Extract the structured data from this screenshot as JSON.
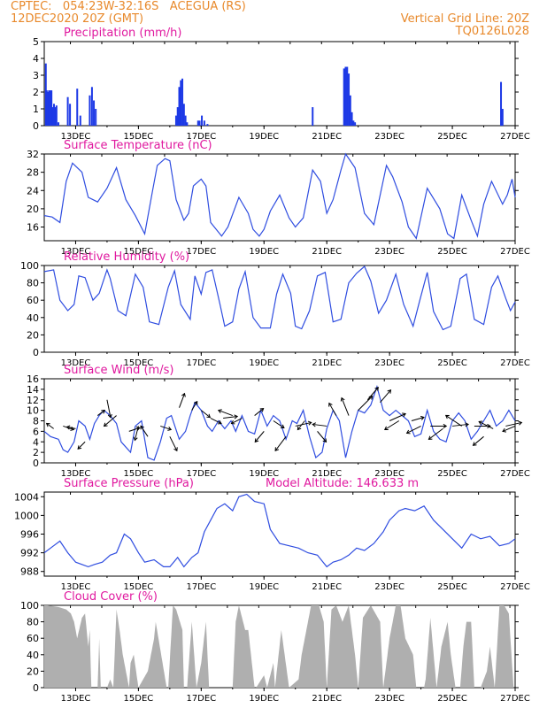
{
  "header": {
    "left_line1": "CPTEC:   054:23W-32:16S   ACEGUA (RS)",
    "left_line2": "12DEC2020 20Z (GMT)",
    "right_line1": "Vertical Grid Line: 20Z",
    "right_line2": "TQ0126L028"
  },
  "colors": {
    "header": "#e8892b",
    "title": "#e0199f",
    "line": "#2f4de0",
    "bar": "#1d39e6",
    "cloud": "#a9a9a9",
    "arrow": "#000000"
  },
  "x_axis_labels": [
    "13DEC",
    "15DEC",
    "17DEC",
    "19DEC",
    "21DEC",
    "23DEC",
    "25DEC",
    "27DEC"
  ],
  "chart_data": [
    {
      "type": "bar",
      "title": "Precipitation (mm/h)",
      "ylim": [
        0,
        5
      ],
      "yticks": [
        0,
        1,
        2,
        3,
        4,
        5
      ],
      "x_range_days": [
        12.0,
        27.0
      ],
      "x": [
        12.05,
        12.08,
        12.11,
        12.15,
        12.19,
        12.23,
        12.27,
        12.31,
        12.35,
        12.39,
        12.45,
        12.75,
        12.82,
        13.05,
        13.15,
        13.45,
        13.52,
        13.58,
        13.64,
        16.2,
        16.25,
        16.3,
        16.35,
        16.4,
        16.45,
        16.5,
        16.55,
        16.9,
        16.95,
        17.02,
        17.1,
        17.2,
        20.55,
        21.55,
        21.6,
        21.65,
        21.7,
        21.75,
        21.8,
        21.85,
        21.9,
        26.55,
        26.6
      ],
      "values": [
        3.7,
        2.1,
        2.0,
        2.1,
        2.1,
        2.1,
        1.1,
        1.3,
        1.1,
        1.2,
        0.2,
        1.7,
        1.3,
        2.2,
        0.6,
        1.8,
        2.3,
        1.5,
        1.0,
        0.6,
        1.1,
        2.3,
        2.7,
        2.8,
        1.3,
        0.6,
        0.2,
        0.3,
        0.3,
        0.6,
        0.3,
        0.1,
        1.1,
        3.4,
        3.5,
        3.5,
        3.1,
        1.8,
        0.8,
        0.3,
        0.2,
        2.6,
        1.0
      ]
    },
    {
      "type": "line",
      "title": "Surface Temperature (nC)",
      "ylim": [
        13,
        32
      ],
      "yticks": [
        16,
        20,
        24,
        28,
        32
      ],
      "x": [
        12.0,
        12.25,
        12.5,
        12.7,
        12.9,
        13.2,
        13.4,
        13.55,
        13.7,
        14.0,
        14.3,
        14.6,
        14.9,
        15.2,
        15.45,
        15.6,
        15.85,
        16.0,
        16.2,
        16.45,
        16.6,
        16.75,
        17.0,
        17.15,
        17.3,
        17.65,
        17.85,
        18.2,
        18.5,
        18.65,
        18.85,
        19.0,
        19.2,
        19.5,
        19.8,
        20.0,
        20.25,
        20.55,
        20.8,
        21.0,
        21.2,
        21.45,
        21.6,
        21.9,
        22.2,
        22.5,
        22.9,
        23.1,
        23.4,
        23.6,
        23.85,
        24.2,
        24.6,
        24.85,
        25.05,
        25.3,
        25.6,
        25.8,
        26.0,
        26.25,
        26.6,
        26.75,
        26.9,
        27.0
      ],
      "values": [
        18.5,
        18.2,
        17.0,
        26.0,
        30.0,
        28.0,
        22.5,
        22.0,
        21.5,
        24.5,
        29.0,
        22.0,
        18.5,
        14.5,
        24.0,
        29.5,
        31.0,
        30.5,
        22.0,
        17.5,
        19.0,
        25.0,
        26.5,
        25.0,
        17.0,
        14.0,
        16.0,
        22.5,
        19.0,
        15.5,
        14.0,
        15.5,
        19.5,
        23.0,
        18.0,
        16.0,
        18.0,
        28.5,
        26.0,
        19.0,
        22.0,
        28.5,
        32.0,
        29.0,
        19.0,
        16.5,
        29.5,
        27.0,
        21.5,
        16.0,
        13.5,
        24.5,
        20.0,
        14.5,
        13.5,
        23.0,
        17.5,
        14.0,
        21.0,
        26.0,
        21.0,
        23.0,
        26.5,
        22.5
      ]
    },
    {
      "type": "line",
      "title": "Relative Humidity (%)",
      "ylim": [
        0,
        100
      ],
      "yticks": [
        0,
        20,
        40,
        60,
        80,
        100
      ],
      "x": [
        12.0,
        12.3,
        12.5,
        12.75,
        12.95,
        13.1,
        13.3,
        13.55,
        13.75,
        14.0,
        14.1,
        14.35,
        14.6,
        14.9,
        15.15,
        15.35,
        15.65,
        15.95,
        16.15,
        16.35,
        16.65,
        16.8,
        17.0,
        17.15,
        17.35,
        17.6,
        17.75,
        18.0,
        18.2,
        18.4,
        18.65,
        18.9,
        19.2,
        19.4,
        19.6,
        19.85,
        20.0,
        20.2,
        20.45,
        20.7,
        20.95,
        21.2,
        21.45,
        21.7,
        21.95,
        22.2,
        22.4,
        22.65,
        22.9,
        23.2,
        23.45,
        23.75,
        23.95,
        24.2,
        24.4,
        24.7,
        24.95,
        25.25,
        25.45,
        25.7,
        26.0,
        26.25,
        26.45,
        26.7,
        26.85,
        27.0
      ],
      "values": [
        93,
        95,
        60,
        48,
        55,
        88,
        86,
        60,
        68,
        95,
        85,
        48,
        42,
        90,
        75,
        35,
        32,
        75,
        94,
        55,
        38,
        88,
        67,
        92,
        95,
        55,
        30,
        35,
        73,
        93,
        40,
        28,
        28,
        67,
        90,
        68,
        30,
        27,
        48,
        88,
        92,
        35,
        38,
        80,
        91,
        99,
        82,
        45,
        60,
        90,
        55,
        30,
        58,
        92,
        47,
        26,
        30,
        85,
        90,
        38,
        32,
        75,
        88,
        62,
        48,
        58
      ]
    },
    {
      "type": "line",
      "title": "Surface Wind (m/s)",
      "ylim": [
        0,
        16
      ],
      "yticks": [
        0,
        2,
        4,
        6,
        8,
        10,
        12,
        14,
        16
      ],
      "x": [
        12.0,
        12.2,
        12.45,
        12.6,
        12.75,
        12.95,
        13.1,
        13.3,
        13.45,
        13.6,
        13.75,
        13.9,
        14.1,
        14.3,
        14.45,
        14.6,
        14.75,
        14.9,
        15.1,
        15.3,
        15.5,
        15.7,
        15.9,
        16.05,
        16.3,
        16.5,
        16.65,
        16.8,
        17.0,
        17.2,
        17.35,
        17.55,
        17.75,
        17.95,
        18.1,
        18.3,
        18.5,
        18.7,
        18.9,
        19.1,
        19.3,
        19.5,
        19.7,
        19.9,
        20.05,
        20.25,
        20.45,
        20.65,
        20.85,
        21.0,
        21.2,
        21.4,
        21.6,
        21.8,
        22.0,
        22.2,
        22.4,
        22.6,
        22.8,
        23.0,
        23.2,
        23.4,
        23.6,
        23.8,
        24.0,
        24.2,
        24.4,
        24.6,
        24.8,
        25.0,
        25.2,
        25.4,
        25.6,
        25.8,
        26.0,
        26.2,
        26.4,
        26.6,
        26.8,
        27.0
      ],
      "values": [
        6,
        5,
        4.5,
        2.5,
        2,
        4,
        8,
        7,
        4.5,
        7.5,
        9,
        10,
        9,
        7.5,
        4,
        3,
        2,
        7,
        8,
        1,
        0.5,
        4,
        8.5,
        9,
        4.5,
        6,
        9,
        11.5,
        10,
        7,
        6,
        8,
        6.5,
        8,
        6,
        9,
        6,
        5.5,
        10,
        7,
        9,
        8,
        4.5,
        8,
        7.5,
        10,
        5,
        1,
        2,
        6.5,
        10,
        8,
        1,
        6,
        10,
        9.5,
        11,
        14.5,
        10,
        9,
        10,
        9,
        8,
        5,
        5.5,
        10,
        6,
        4.5,
        4,
        8,
        9.5,
        8,
        4.5,
        6,
        8,
        10,
        7,
        8,
        10,
        8
      ]
    },
    {
      "type": "line",
      "title": "Surface Pressure (hPa)",
      "annotation": "Model Altitude: 146.633 m",
      "ylim": [
        987,
        1005
      ],
      "yticks": [
        988,
        992,
        996,
        1000,
        1004
      ],
      "x": [
        12.0,
        12.3,
        12.5,
        12.75,
        13.0,
        13.2,
        13.4,
        13.6,
        13.85,
        14.1,
        14.3,
        14.55,
        14.75,
        15.0,
        15.2,
        15.5,
        15.8,
        16.0,
        16.25,
        16.45,
        16.7,
        16.9,
        17.1,
        17.3,
        17.5,
        17.75,
        18.0,
        18.2,
        18.45,
        18.7,
        19.0,
        19.2,
        19.5,
        19.8,
        20.1,
        20.4,
        20.7,
        21.0,
        21.2,
        21.45,
        21.7,
        21.95,
        22.2,
        22.5,
        22.8,
        23.0,
        23.3,
        23.5,
        23.8,
        24.1,
        24.4,
        24.7,
        25.0,
        25.3,
        25.6,
        25.9,
        26.2,
        26.5,
        26.8,
        27.0
      ],
      "values": [
        992,
        993.5,
        994.5,
        992,
        990,
        989.5,
        989,
        989.5,
        990,
        991.5,
        992,
        996,
        995,
        992,
        990,
        990.5,
        989,
        989,
        991,
        989,
        991,
        992,
        996.5,
        999,
        1001.5,
        1002.5,
        1001,
        1004,
        1004.5,
        1003,
        1002.5,
        997,
        994,
        993.5,
        993,
        992,
        991.5,
        989,
        990,
        990.5,
        991.5,
        993,
        992.5,
        994,
        996.5,
        999,
        1001,
        1001.5,
        1001,
        1002,
        999,
        997,
        995,
        993,
        996,
        995,
        995.5,
        993.5,
        994,
        995
      ]
    },
    {
      "type": "area",
      "title": "Cloud Cover (%)",
      "ylim": [
        0,
        100
      ],
      "yticks": [
        0,
        20,
        40,
        60,
        80,
        100
      ],
      "x": [
        12.0,
        12.1,
        12.45,
        12.7,
        12.85,
        12.95,
        13.05,
        13.2,
        13.3,
        13.4,
        13.45,
        13.5,
        13.7,
        13.75,
        13.8,
        14.0,
        14.1,
        14.2,
        14.3,
        14.4,
        14.5,
        14.7,
        14.75,
        14.85,
        15.0,
        15.3,
        15.5,
        15.55,
        15.9,
        15.95,
        16.1,
        16.2,
        16.4,
        16.45,
        16.55,
        16.7,
        16.85,
        17.0,
        17.15,
        17.25,
        17.35,
        17.9,
        18.0,
        18.1,
        18.2,
        18.4,
        18.5,
        18.7,
        18.75,
        19.0,
        19.1,
        19.3,
        19.35,
        19.55,
        19.8,
        20.1,
        20.2,
        20.5,
        20.75,
        20.9,
        21.0,
        21.15,
        21.3,
        21.5,
        21.7,
        21.9,
        22.0,
        22.15,
        22.4,
        22.55,
        22.7,
        22.8,
        22.9,
        23.0,
        23.2,
        23.35,
        23.5,
        23.75,
        23.85,
        24.1,
        24.15,
        24.3,
        24.5,
        24.65,
        24.85,
        24.95,
        25.1,
        25.25,
        25.35,
        25.45,
        25.6,
        25.7,
        25.9,
        26.1,
        26.2,
        26.35,
        26.5,
        26.65,
        26.8,
        26.95,
        27.0
      ],
      "values": [
        100,
        100,
        98,
        95,
        90,
        80,
        60,
        85,
        90,
        50,
        70,
        0,
        0,
        60,
        0,
        0,
        10,
        0,
        95,
        70,
        40,
        0,
        30,
        40,
        0,
        20,
        60,
        80,
        0,
        0,
        100,
        95,
        70,
        0,
        0,
        80,
        0,
        30,
        80,
        0,
        0,
        0,
        0,
        80,
        100,
        70,
        70,
        0,
        0,
        15,
        0,
        30,
        0,
        70,
        0,
        10,
        40,
        100,
        100,
        80,
        0,
        95,
        100,
        80,
        100,
        40,
        0,
        85,
        100,
        90,
        80,
        0,
        30,
        60,
        100,
        100,
        60,
        40,
        0,
        0,
        10,
        85,
        0,
        50,
        80,
        40,
        0,
        0,
        50,
        80,
        80,
        0,
        0,
        20,
        50,
        0,
        100,
        100,
        90,
        0,
        0
      ]
    },
    {
      "type": "vector",
      "title": "Surface Wind (m/s)",
      "note": "wind arrows, direction in degrees toward, length in m/s",
      "x": [
        12.3,
        12.6,
        13.0,
        13.3,
        13.7,
        14.0,
        14.3,
        14.7,
        15.0,
        15.3,
        15.7,
        16.0,
        16.3,
        16.7,
        17.0,
        17.3,
        17.7,
        18.0,
        18.3,
        18.7,
        19.0,
        19.3,
        19.7,
        20.0,
        20.3,
        20.7,
        21.0,
        21.3,
        21.7,
        22.0,
        22.3,
        22.7,
        23.0,
        23.3,
        23.7,
        24.0,
        24.3,
        24.7,
        25.0,
        25.3,
        25.7,
        26.0,
        26.3,
        26.7,
        27.0
      ],
      "y": [
        6.5,
        7,
        6.5,
        4,
        9,
        12,
        9,
        6,
        7,
        5,
        7,
        5,
        10.5,
        10,
        10,
        8.5,
        8.5,
        9,
        8.5,
        9,
        6,
        8,
        5,
        7,
        8,
        6,
        7,
        9,
        9,
        10,
        12,
        11.5,
        8,
        8,
        8,
        7,
        7,
        6.5,
        7,
        7,
        7,
        5,
        6.5,
        7,
        7
      ],
      "dx": [
        -8,
        12,
        -10,
        -8,
        8,
        4,
        -14,
        12,
        -4,
        -8,
        12,
        8,
        6,
        6,
        10,
        12,
        16,
        -16,
        -12,
        10,
        -10,
        12,
        -12,
        18,
        -8,
        10,
        -16,
        -8,
        -8,
        16,
        12,
        12,
        18,
        -16,
        14,
        -16,
        18,
        -16,
        18,
        -18,
        18,
        -12,
        -16,
        18,
        -14
      ],
      "dy": [
        -6,
        4,
        -2,
        8,
        -6,
        20,
        12,
        -4,
        16,
        -12,
        4,
        16,
        -16,
        -10,
        8,
        6,
        -2,
        -6,
        6,
        -8,
        12,
        8,
        16,
        -4,
        10,
        12,
        -2,
        -14,
        -20,
        -16,
        -14,
        -14,
        -8,
        10,
        -4,
        8,
        0,
        12,
        -2,
        -12,
        0,
        10,
        -8,
        -4,
        6
      ]
    }
  ]
}
